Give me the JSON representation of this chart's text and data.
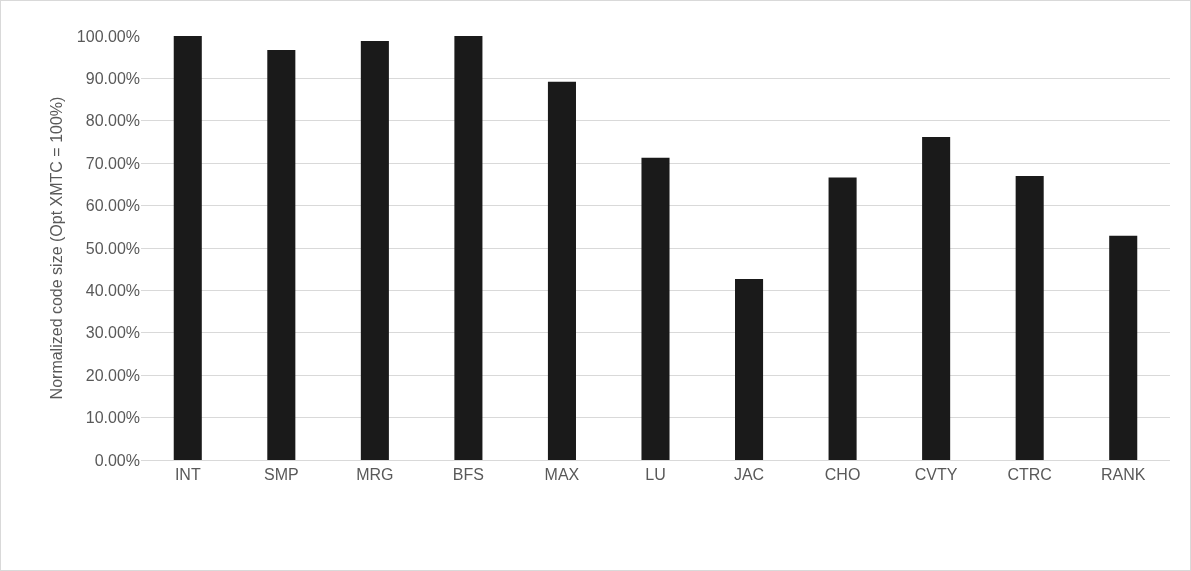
{
  "chart_data": {
    "type": "bar",
    "ylabel": "Normalized code size (Opt XMTC = 100%)",
    "categories": [
      "INT",
      "SMP",
      "MRG",
      "BFS",
      "MAX",
      "LU",
      "JAC",
      "CHO",
      "CVTY",
      "CTRC",
      "RANK"
    ],
    "values": [
      100,
      96.7,
      98.8,
      100,
      89.2,
      71.3,
      42.7,
      66.6,
      76.2,
      67.0,
      52.9
    ],
    "color": "#1a1a1a",
    "ylim": [
      0,
      100
    ],
    "yticks": [
      {
        "value": 0,
        "label": "0.00%"
      },
      {
        "value": 10,
        "label": "10.00%"
      },
      {
        "value": 20,
        "label": "20.00%"
      },
      {
        "value": 30,
        "label": "30.00%"
      },
      {
        "value": 40,
        "label": "40.00%"
      },
      {
        "value": 50,
        "label": "50.00%"
      },
      {
        "value": 60,
        "label": "60.00%"
      },
      {
        "value": 70,
        "label": "70.00%"
      },
      {
        "value": 80,
        "label": "80.00%"
      },
      {
        "value": 90,
        "label": "90.00%"
      },
      {
        "value": 100,
        "label": "100.00%"
      }
    ],
    "grid": "y"
  }
}
